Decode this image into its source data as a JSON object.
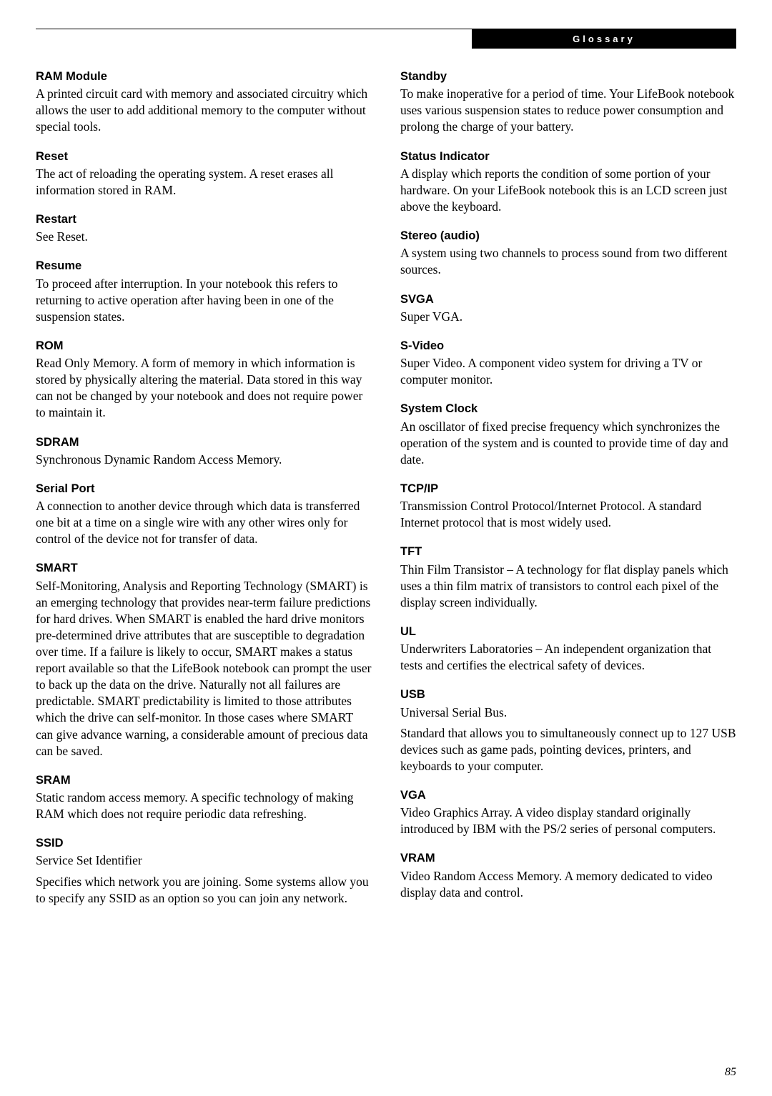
{
  "header": {
    "tab_label": "Glossary"
  },
  "page_number": "85",
  "left_column": [
    {
      "term": "RAM Module",
      "definition": [
        "A printed circuit card with memory and associated circuitry which allows the user to add additional memory to the computer without special tools."
      ]
    },
    {
      "term": "Reset",
      "definition": [
        "The act of reloading the operating system. A reset erases all information stored in RAM."
      ]
    },
    {
      "term": "Restart",
      "definition": [
        "See Reset."
      ]
    },
    {
      "term": "Resume",
      "definition": [
        "To proceed after interruption. In your notebook this refers to returning to active operation after having been in one of the suspension states."
      ]
    },
    {
      "term": "ROM",
      "definition": [
        "Read Only Memory. A form of memory in which information is stored by physically altering the material. Data stored in this way can not be changed by your notebook and does not require power to maintain it."
      ]
    },
    {
      "term": "SDRAM",
      "definition": [
        "Synchronous Dynamic Random Access Memory."
      ]
    },
    {
      "term": "Serial Port",
      "definition": [
        "A connection to another device through which data is transferred one bit at a time on a single wire with any other wires only for control of the device not for transfer of data."
      ]
    },
    {
      "term": "SMART",
      "definition": [
        "Self-Monitoring, Analysis and Reporting Technology (SMART) is an emerging technology that provides near-term failure predictions for hard drives. When SMART is enabled the hard drive monitors pre-determined drive attributes that are susceptible to degradation over time. If a failure is likely to occur, SMART makes a status report available so that the LifeBook notebook can prompt the user to back up the data on the drive. Naturally not all failures are predictable. SMART predictability is limited to those attributes which the drive can self-monitor. In those cases where SMART can give advance warning, a considerable amount of precious data can be saved."
      ]
    },
    {
      "term": "SRAM",
      "definition": [
        "Static random access memory. A specific technology of making RAM which does not require periodic data refreshing."
      ]
    },
    {
      "term": "SSID",
      "definition": [
        "Service Set Identifier",
        "Specifies which network you are joining. Some systems allow you to specify any SSID as an option so you can join any network."
      ]
    }
  ],
  "right_column": [
    {
      "term": "Standby",
      "definition": [
        "To make inoperative for a period of time. Your LifeBook notebook uses various suspension states to reduce power consumption and prolong the charge of your battery."
      ]
    },
    {
      "term": "Status Indicator",
      "definition": [
        "A display which reports the condition of some portion of your hardware. On your LifeBook notebook this is an LCD screen just above the keyboard."
      ]
    },
    {
      "term": "Stereo (audio)",
      "definition": [
        "A system using two channels to process sound from two different sources."
      ]
    },
    {
      "term": "SVGA",
      "definition": [
        "Super VGA."
      ]
    },
    {
      "term": "S-Video",
      "definition": [
        "Super Video. A component video system for driving a TV or computer monitor."
      ]
    },
    {
      "term": "System Clock",
      "definition": [
        "An oscillator of fixed precise frequency which synchronizes the operation of the system and is counted to provide time of day and date."
      ]
    },
    {
      "term": "TCP/IP",
      "definition": [
        "Transmission Control Protocol/Internet Protocol. A standard Internet protocol that is most widely used."
      ]
    },
    {
      "term": "TFT",
      "definition": [
        "Thin Film Transistor – A technology for flat display panels which uses a thin film matrix of transistors to control each pixel of the display screen individually."
      ]
    },
    {
      "term": "UL",
      "definition": [
        "Underwriters Laboratories – An independent organization that tests and certifies the electrical safety of devices."
      ]
    },
    {
      "term": "USB",
      "definition": [
        "Universal Serial Bus.",
        "Standard that allows you to simultaneously connect up to 127 USB devices such as game pads, pointing devices, printers, and keyboards to your computer."
      ]
    },
    {
      "term": "VGA",
      "definition": [
        "Video Graphics Array. A video display standard originally introduced by IBM with the PS/2 series of personal computers."
      ]
    },
    {
      "term": "VRAM",
      "definition": [
        "Video Random Access Memory. A memory dedicated to video display data and control."
      ]
    }
  ]
}
